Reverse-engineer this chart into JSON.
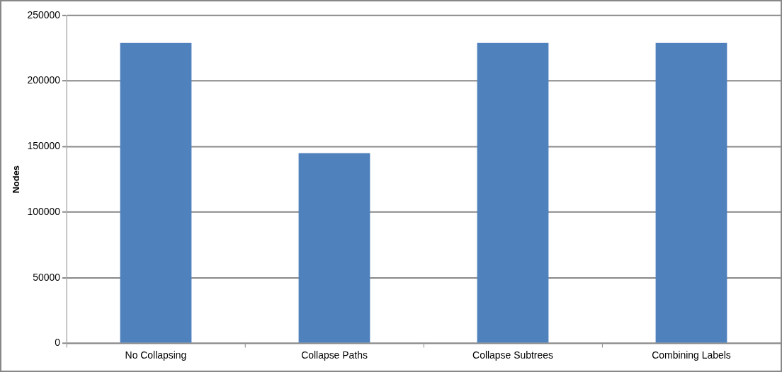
{
  "chart_data": {
    "type": "bar",
    "ylabel": "Nodes",
    "categories": [
      "No Collapsing",
      "Collapse Paths",
      "Collapse Subtrees",
      "Combining Labels"
    ],
    "values": [
      229000,
      145000,
      229000,
      229000
    ],
    "color": "#4f81bd",
    "ylim": [
      0,
      250000
    ],
    "yticks": [
      0,
      50000,
      100000,
      150000,
      200000,
      250000
    ],
    "grid": "y",
    "legend": false
  }
}
